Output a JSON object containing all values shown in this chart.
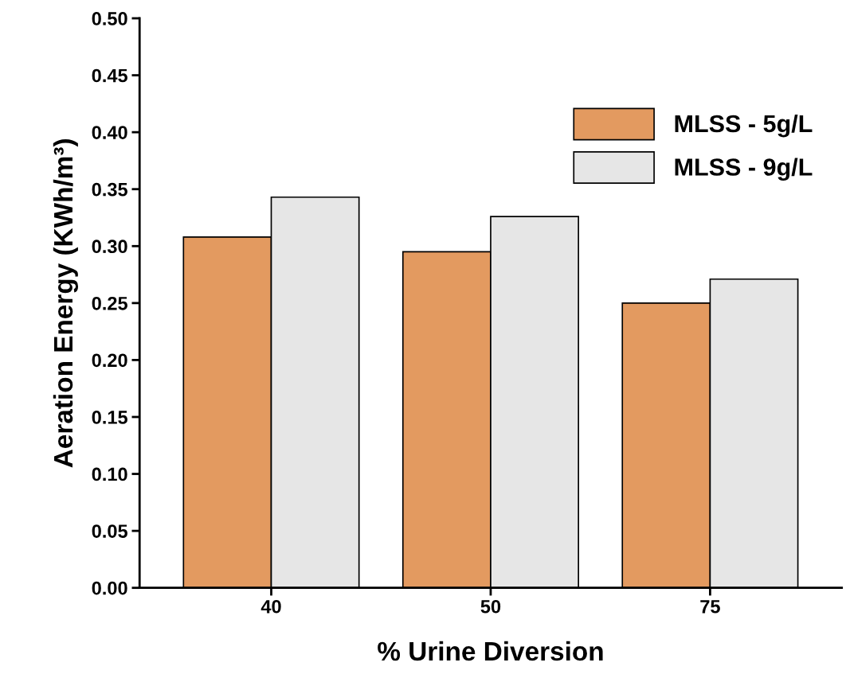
{
  "chart_data": {
    "type": "bar",
    "xlabel": "% Urine Diversion",
    "ylabel": "Aeration Energy (KWh/m³)",
    "categories": [
      "40",
      "50",
      "75"
    ],
    "series": [
      {
        "name": "MLSS - 5g/L",
        "color": "#e39a60",
        "values": [
          0.308,
          0.295,
          0.25
        ]
      },
      {
        "name": "MLSS - 9g/L",
        "color": "#e6e6e6",
        "values": [
          0.343,
          0.326,
          0.271
        ]
      }
    ],
    "ylim": [
      0,
      0.5
    ],
    "yticks": [
      {
        "value": 0,
        "label": "0.00"
      },
      {
        "value": 0.05,
        "label": "0.05"
      },
      {
        "value": 0.1,
        "label": "0.10"
      },
      {
        "value": 0.15,
        "label": "0.15"
      },
      {
        "value": 0.2,
        "label": "0.20"
      },
      {
        "value": 0.25,
        "label": "0.25"
      },
      {
        "value": 0.3,
        "label": "0.30"
      },
      {
        "value": 0.35,
        "label": "0.35"
      },
      {
        "value": 0.4,
        "label": "0.40"
      },
      {
        "value": 0.45,
        "label": "0.45"
      },
      {
        "value": 0.5,
        "label": "0.50"
      }
    ],
    "legend": "top right",
    "grid": false
  }
}
